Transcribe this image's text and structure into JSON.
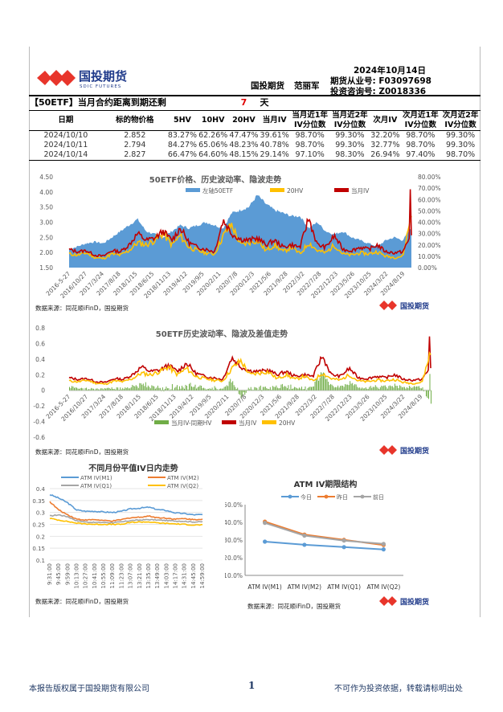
{
  "header": {
    "company": "国投期货",
    "analyst": "范丽军",
    "date": "2024年10月14日",
    "license": "期货从业号: F03097698",
    "consult": "投资咨询号: Z0018336",
    "logo_cn": "国投期货",
    "logo_en": "SDIC FUTURES"
  },
  "banner": {
    "tag": "【50ETF】",
    "text": "当月合约距离到期还剩",
    "days": "7",
    "unit": "天",
    "days_color": "#e00000"
  },
  "table": {
    "headers": [
      "日期",
      "标的物价格",
      "5HV",
      "10HV",
      "20HV",
      "当月IV",
      "当月近1年IV分位数",
      "当月近2年IV分位数",
      "次月IV",
      "次月近1年IV分位数",
      "次月近2年IV分位数"
    ],
    "rows": [
      [
        "2024/10/10",
        "2.852",
        "83.27%",
        "62.26%",
        "47.47%",
        "39.61%",
        "98.70%",
        "99.30%",
        "32.20%",
        "98.70%",
        "99.30%"
      ],
      [
        "2024/10/11",
        "2.794",
        "84.27%",
        "65.06%",
        "48.23%",
        "40.78%",
        "98.70%",
        "99.30%",
        "32.77%",
        "98.70%",
        "99.30%"
      ],
      [
        "2024/10/14",
        "2.827",
        "66.47%",
        "64.60%",
        "48.15%",
        "29.14%",
        "97.10%",
        "98.30%",
        "26.94%",
        "97.40%",
        "98.70%"
      ]
    ]
  },
  "source": "数据来源：同花顺iFinD，国投期货",
  "footer": {
    "left": "本报告版权属于国投期货有限公司",
    "page": "1",
    "right": "不可作为投资依据，转载请标明出处"
  },
  "chart_data": [
    {
      "type": "area+line",
      "title": "50ETF价格、历史波动率、隐波走势",
      "ylim": [
        1.5,
        4.5
      ],
      "yticks": [
        "1.50",
        "2.00",
        "2.50",
        "3.00",
        "3.50",
        "4.00",
        "4.50"
      ],
      "y2lim": [
        0,
        0.8
      ],
      "y2ticks": [
        "0.00%",
        "10.00%",
        "20.00%",
        "30.00%",
        "40.00%",
        "50.00%",
        "60.00%",
        "70.00%",
        "80.00%"
      ],
      "xticks": [
        "2016-5-27",
        "2016/10/27",
        "2017/3/24",
        "2017/8/18",
        "2018/1/15",
        "2018/6/15",
        "2018/11/13",
        "2019/4/12",
        "2019/9/5",
        "2020/2/11",
        "2020/7/8",
        "2020/12/3",
        "2021/5/6",
        "2021/9/28",
        "2022/3/2",
        "2022/7/28",
        "2022/12/23",
        "2023/5/26",
        "2023/10/25",
        "2024/3/22",
        "2024/8/19"
      ],
      "legend": "top",
      "series": [
        {
          "name": "左轴50ETF",
          "color": "#5b9bd5",
          "values": [
            2.1,
            2.2,
            2.3,
            2.35,
            2.3,
            2.5,
            2.7,
            2.9,
            3.1,
            2.7,
            2.6,
            2.5,
            2.7,
            2.9,
            2.8,
            2.9,
            3.0,
            2.9,
            2.8,
            3.3,
            3.4,
            3.5,
            3.9,
            3.6,
            3.4,
            3.3,
            3.2,
            3.2,
            2.8,
            3.0,
            2.7,
            2.6,
            2.7,
            2.5,
            2.4,
            2.3,
            2.2,
            2.4,
            2.5,
            2.4,
            2.83
          ]
        },
        {
          "name": "20HV",
          "color": "#ffc000",
          "values": [
            0.12,
            0.11,
            0.13,
            0.09,
            0.08,
            0.12,
            0.11,
            0.15,
            0.22,
            0.2,
            0.24,
            0.3,
            0.2,
            0.28,
            0.18,
            0.15,
            0.13,
            0.12,
            0.28,
            0.38,
            0.2,
            0.22,
            0.24,
            0.15,
            0.2,
            0.14,
            0.18,
            0.12,
            0.22,
            0.15,
            0.13,
            0.2,
            0.12,
            0.11,
            0.13,
            0.12,
            0.14,
            0.1,
            0.09,
            0.1,
            0.48
          ]
        },
        {
          "name": "当月IV",
          "color": "#c00000",
          "values": [
            0.16,
            0.14,
            0.15,
            0.11,
            0.1,
            0.15,
            0.14,
            0.2,
            0.3,
            0.24,
            0.26,
            0.32,
            0.24,
            0.35,
            0.22,
            0.18,
            0.16,
            0.14,
            0.42,
            0.3,
            0.25,
            0.24,
            0.26,
            0.2,
            0.24,
            0.18,
            0.2,
            0.18,
            0.44,
            0.2,
            0.18,
            0.28,
            0.16,
            0.15,
            0.18,
            0.16,
            0.2,
            0.14,
            0.13,
            0.14,
            0.29
          ]
        }
      ]
    },
    {
      "type": "bar+line",
      "title": "50ETF历史波动率、隐波及差值走势",
      "ylim": [
        -0.6,
        0.8
      ],
      "yticks": [
        "-0.6",
        "-0.4",
        "-0.2",
        "0",
        "0.2",
        "0.4",
        "0.6",
        "0.8"
      ],
      "legend": "bottom",
      "series": [
        {
          "name": "当月IV-同期HV",
          "color": "#70ad47"
        },
        {
          "name": "当月IV",
          "color": "#c00000"
        },
        {
          "name": "20HV",
          "color": "#ffc000"
        }
      ]
    },
    {
      "type": "line",
      "title": "不同月份平值IV日内走势",
      "ylim": [
        0.1,
        0.4
      ],
      "yticks": [
        "0.1",
        "0.15",
        "0.2",
        "0.25",
        "0.3",
        "0.35",
        "0.4"
      ],
      "xticks": [
        "9:31:00",
        "9:45:00",
        "9:59:00",
        "10:13:00",
        "10:27:00",
        "10:41:00",
        "10:55:00",
        "11:09:00",
        "11:23:00",
        "13:07:00",
        "13:21:00",
        "13:35:00",
        "13:49:00",
        "14:03:00",
        "14:17:00",
        "14:31:00",
        "14:45:00",
        "14:59:00"
      ],
      "legend": "top",
      "series": [
        {
          "name": "ATM IV(M1)",
          "color": "#5b9bd5",
          "values": [
            0.375,
            0.36,
            0.34,
            0.31,
            0.305,
            0.305,
            0.302,
            0.3,
            0.305,
            0.315,
            0.318,
            0.322,
            0.312,
            0.308,
            0.298,
            0.295,
            0.29,
            0.291
          ]
        },
        {
          "name": "ATM IV(M2)",
          "color": "#ed7d31",
          "values": [
            0.345,
            0.31,
            0.29,
            0.272,
            0.268,
            0.27,
            0.266,
            0.264,
            0.27,
            0.278,
            0.28,
            0.285,
            0.278,
            0.276,
            0.272,
            0.274,
            0.27,
            0.272
          ]
        },
        {
          "name": "ATM IV(Q1)",
          "color": "#a5a5a5",
          "values": [
            0.285,
            0.29,
            0.282,
            0.265,
            0.26,
            0.258,
            0.258,
            0.257,
            0.26,
            0.266,
            0.268,
            0.27,
            0.268,
            0.266,
            0.264,
            0.263,
            0.26,
            0.261
          ]
        },
        {
          "name": "ATM IV(Q2)",
          "color": "#ffc000",
          "values": [
            0.275,
            0.268,
            0.262,
            0.255,
            0.252,
            0.25,
            0.25,
            0.25,
            0.25,
            0.258,
            0.26,
            0.26,
            0.256,
            0.254,
            0.252,
            0.25,
            0.247,
            0.248
          ]
        }
      ]
    },
    {
      "type": "line",
      "title": "ATM IV期限结构",
      "ylim": [
        0.1,
        0.5
      ],
      "yticks": [
        "10.0%",
        "20.0%",
        "30.0%",
        "40.0%",
        "50.0%"
      ],
      "categories": [
        "ATM IV(M1)",
        "ATM IV(M2)",
        "ATM IV(Q1)",
        "ATM IV(Q2)"
      ],
      "legend": "top",
      "series": [
        {
          "name": "今日",
          "color": "#5b9bd5",
          "values": [
            0.291,
            0.273,
            0.26,
            0.247
          ]
        },
        {
          "name": "昨日",
          "color": "#ed7d31",
          "values": [
            0.404,
            0.331,
            0.301,
            0.272
          ]
        },
        {
          "name": "前日",
          "color": "#a5a5a5",
          "values": [
            0.397,
            0.325,
            0.297,
            0.278
          ]
        }
      ]
    }
  ]
}
